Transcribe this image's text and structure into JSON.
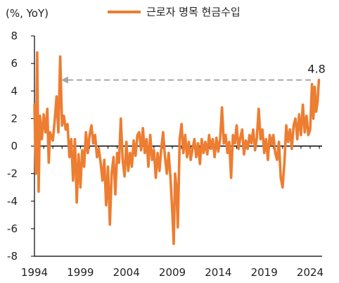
{
  "chart_data": {
    "type": "line",
    "unit_label": "(%, YoY)",
    "yticks": [
      8,
      6,
      4,
      2,
      0,
      -2,
      -4,
      -6,
      -8
    ],
    "ylim": [
      -8,
      8
    ],
    "xticks": [
      "1994",
      "1999",
      "2004",
      "2009",
      "2014",
      "2019",
      "2024"
    ],
    "xlim": [
      1994,
      2025.3
    ],
    "series": [
      {
        "name": "근로자 명목 현금수입",
        "color": "#ED7D31",
        "points": [
          [
            1994.0,
            3.0
          ],
          [
            1994.15,
            -2.0
          ],
          [
            1994.3,
            6.8
          ],
          [
            1994.45,
            -3.3
          ],
          [
            1994.6,
            2.2
          ],
          [
            1994.8,
            0.5
          ],
          [
            1995.0,
            2.3
          ],
          [
            1995.2,
            1.0
          ],
          [
            1995.4,
            2.7
          ],
          [
            1995.55,
            -1.2
          ],
          [
            1995.7,
            1.0
          ],
          [
            1996.0,
            0.4
          ],
          [
            1996.2,
            1.8
          ],
          [
            1996.4,
            3.6
          ],
          [
            1996.6,
            1.0
          ],
          [
            1996.8,
            6.5
          ],
          [
            1997.0,
            1.5
          ],
          [
            1997.2,
            2.2
          ],
          [
            1997.4,
            1.2
          ],
          [
            1997.6,
            1.6
          ],
          [
            1997.8,
            -0.8
          ],
          [
            1998.0,
            0.5
          ],
          [
            1998.2,
            -2.5
          ],
          [
            1998.4,
            0.5
          ],
          [
            1998.6,
            -4.1
          ],
          [
            1998.8,
            -0.6
          ],
          [
            1999.0,
            -3.0
          ],
          [
            1999.2,
            -0.3
          ],
          [
            1999.4,
            -1.5
          ],
          [
            1999.6,
            1.0
          ],
          [
            1999.8,
            -0.5
          ],
          [
            2000.0,
            0.8
          ],
          [
            2000.2,
            1.5
          ],
          [
            2000.4,
            0.2
          ],
          [
            2000.6,
            0.8
          ],
          [
            2000.8,
            -0.8
          ],
          [
            2001.0,
            -0.2
          ],
          [
            2001.2,
            -1.2
          ],
          [
            2001.4,
            -2.5
          ],
          [
            2001.6,
            -1.0
          ],
          [
            2001.8,
            -4.3
          ],
          [
            2002.0,
            -1.5
          ],
          [
            2002.2,
            -5.7
          ],
          [
            2002.4,
            -2.0
          ],
          [
            2002.6,
            -0.8
          ],
          [
            2002.8,
            -3.5
          ],
          [
            2003.0,
            -0.5
          ],
          [
            2003.2,
            -1.2
          ],
          [
            2003.4,
            2.0
          ],
          [
            2003.6,
            -1.0
          ],
          [
            2003.8,
            -2.2
          ],
          [
            2004.0,
            0.3
          ],
          [
            2004.2,
            -1.8
          ],
          [
            2004.4,
            -0.5
          ],
          [
            2004.6,
            -1.5
          ],
          [
            2004.8,
            0.4
          ],
          [
            2005.0,
            -0.7
          ],
          [
            2005.2,
            0.8
          ],
          [
            2005.4,
            1.0
          ],
          [
            2005.6,
            -0.3
          ],
          [
            2005.8,
            1.3
          ],
          [
            2006.0,
            -0.5
          ],
          [
            2006.2,
            0.5
          ],
          [
            2006.4,
            -1.5
          ],
          [
            2006.6,
            0.8
          ],
          [
            2006.8,
            -1.0
          ],
          [
            2007.0,
            -0.3
          ],
          [
            2007.2,
            -2.3
          ],
          [
            2007.4,
            -0.5
          ],
          [
            2007.6,
            -1.8
          ],
          [
            2007.8,
            -0.2
          ],
          [
            2008.0,
            1.0
          ],
          [
            2008.2,
            -0.8
          ],
          [
            2008.4,
            -2.0
          ],
          [
            2008.6,
            -0.5
          ],
          [
            2008.8,
            -2.3
          ],
          [
            2009.0,
            -4.8
          ],
          [
            2009.15,
            -7.1
          ],
          [
            2009.3,
            -2.0
          ],
          [
            2009.45,
            -3.0
          ],
          [
            2009.6,
            -5.9
          ],
          [
            2009.8,
            0.5
          ],
          [
            2010.0,
            1.6
          ],
          [
            2010.2,
            -0.5
          ],
          [
            2010.4,
            0.8
          ],
          [
            2010.6,
            -0.8
          ],
          [
            2010.8,
            0.3
          ],
          [
            2011.0,
            -1.0
          ],
          [
            2011.2,
            -0.2
          ],
          [
            2011.4,
            0.5
          ],
          [
            2011.6,
            -0.8
          ],
          [
            2011.8,
            0.2
          ],
          [
            2012.0,
            -1.3
          ],
          [
            2012.2,
            0.5
          ],
          [
            2012.4,
            -0.5
          ],
          [
            2012.6,
            0.3
          ],
          [
            2012.8,
            -0.6
          ],
          [
            2013.0,
            0.8
          ],
          [
            2013.2,
            -0.2
          ],
          [
            2013.4,
            0.5
          ],
          [
            2013.6,
            -0.8
          ],
          [
            2013.8,
            0.6
          ],
          [
            2014.0,
            -0.4
          ],
          [
            2014.2,
            0.5
          ],
          [
            2014.4,
            2.8
          ],
          [
            2014.6,
            0.2
          ],
          [
            2014.8,
            0.8
          ],
          [
            2015.0,
            -0.5
          ],
          [
            2015.2,
            0.3
          ],
          [
            2015.4,
            -2.3
          ],
          [
            2015.6,
            0.8
          ],
          [
            2015.8,
            0.2
          ],
          [
            2016.0,
            1.5
          ],
          [
            2016.2,
            -0.2
          ],
          [
            2016.4,
            0.6
          ],
          [
            2016.6,
            1.2
          ],
          [
            2016.8,
            -0.6
          ],
          [
            2017.0,
            0.4
          ],
          [
            2017.2,
            -0.2
          ],
          [
            2017.4,
            0.8
          ],
          [
            2017.6,
            0.2
          ],
          [
            2017.8,
            1.2
          ],
          [
            2018.0,
            -0.3
          ],
          [
            2018.2,
            0.6
          ],
          [
            2018.4,
            2.7
          ],
          [
            2018.6,
            0.5
          ],
          [
            2018.8,
            1.2
          ],
          [
            2019.0,
            -0.5
          ],
          [
            2019.2,
            0.5
          ],
          [
            2019.4,
            -1.0
          ],
          [
            2019.6,
            0.8
          ],
          [
            2019.8,
            0.1
          ],
          [
            2020.0,
            0.8
          ],
          [
            2020.2,
            -0.5
          ],
          [
            2020.4,
            -1.0
          ],
          [
            2020.6,
            0.3
          ],
          [
            2020.8,
            -2.3
          ],
          [
            2021.0,
            -3.0
          ],
          [
            2021.2,
            -1.2
          ],
          [
            2021.4,
            1.5
          ],
          [
            2021.6,
            0.3
          ],
          [
            2021.8,
            1.2
          ],
          [
            2022.0,
            -0.2
          ],
          [
            2022.2,
            1.5
          ],
          [
            2022.4,
            2.0
          ],
          [
            2022.6,
            0.5
          ],
          [
            2022.8,
            2.3
          ],
          [
            2023.0,
            0.8
          ],
          [
            2023.2,
            3.0
          ],
          [
            2023.4,
            1.0
          ],
          [
            2023.6,
            2.2
          ],
          [
            2023.8,
            0.8
          ],
          [
            2024.0,
            1.2
          ],
          [
            2024.2,
            4.5
          ],
          [
            2024.35,
            2.0
          ],
          [
            2024.5,
            4.3
          ],
          [
            2024.65,
            2.5
          ],
          [
            2024.8,
            3.2
          ],
          [
            2024.95,
            4.8
          ]
        ]
      }
    ],
    "annotation": {
      "text": "4.8",
      "arrow_from": [
        2025.0,
        4.8
      ],
      "arrow_to": [
        1996.9,
        4.8
      ]
    }
  }
}
